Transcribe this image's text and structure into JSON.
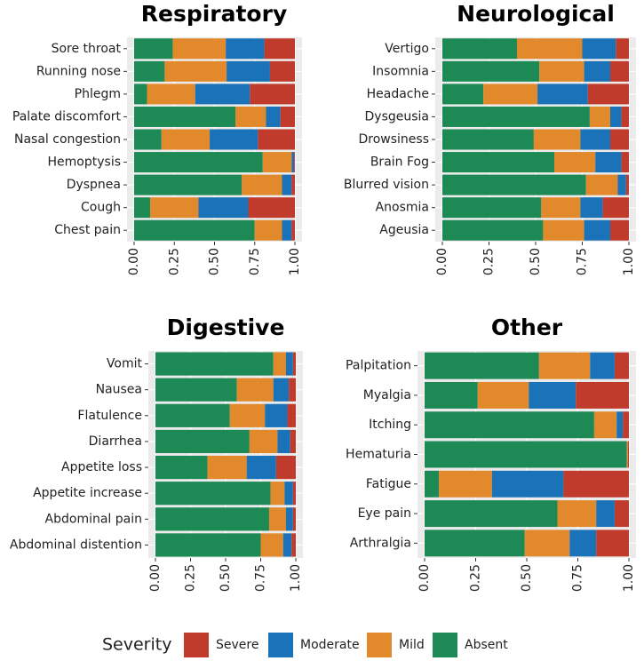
{
  "legend": {
    "title": "Severity",
    "position": "bottom"
  },
  "chart_data": [
    {
      "type": "bar",
      "orientation": "horizontal",
      "stacked": true,
      "title": "Respiratory",
      "grid": true,
      "categories": [
        "Sore throat",
        "Running nose",
        "Phlegm",
        "Palate discomfort",
        "Nasal congestion",
        "Hemoptysis",
        "Dyspnea",
        "Cough",
        "Chest pain"
      ],
      "series": [
        {
          "name": "Absent",
          "color": "#1d8a56",
          "values": [
            0.24,
            0.19,
            0.08,
            0.63,
            0.17,
            0.8,
            0.67,
            0.1,
            0.75
          ]
        },
        {
          "name": "Mild",
          "color": "#e2892b",
          "values": [
            0.33,
            0.385,
            0.3,
            0.19,
            0.3,
            0.18,
            0.25,
            0.3,
            0.17
          ]
        },
        {
          "name": "Moderate",
          "color": "#1a72b8",
          "values": [
            0.24,
            0.27,
            0.34,
            0.09,
            0.3,
            0.015,
            0.06,
            0.31,
            0.06
          ]
        },
        {
          "name": "Severe",
          "color": "#c13b2c",
          "values": [
            0.19,
            0.155,
            0.28,
            0.09,
            0.23,
            0.005,
            0.02,
            0.29,
            0.02
          ]
        }
      ],
      "xlim": [
        0,
        1
      ],
      "xticks": [
        {
          "value": 0,
          "label": "0.00"
        },
        {
          "value": 0.25,
          "label": "0.25"
        },
        {
          "value": 0.5,
          "label": "0.50"
        },
        {
          "value": 0.75,
          "label": "0.75"
        },
        {
          "value": 1,
          "label": "1.00"
        }
      ]
    },
    {
      "type": "bar",
      "orientation": "horizontal",
      "stacked": true,
      "title": "Neurological",
      "grid": true,
      "categories": [
        "Vertigo",
        "Insomnia",
        "Headache",
        "Dysgeusia",
        "Drowsiness",
        "Brain Fog",
        "Blurred vision",
        "Anosmia",
        "Ageusia"
      ],
      "series": [
        {
          "name": "Absent",
          "color": "#1d8a56",
          "values": [
            0.4,
            0.52,
            0.22,
            0.79,
            0.49,
            0.6,
            0.77,
            0.53,
            0.54
          ]
        },
        {
          "name": "Mild",
          "color": "#e2892b",
          "values": [
            0.35,
            0.24,
            0.29,
            0.11,
            0.25,
            0.22,
            0.17,
            0.21,
            0.22
          ]
        },
        {
          "name": "Moderate",
          "color": "#1a72b8",
          "values": [
            0.18,
            0.14,
            0.27,
            0.06,
            0.16,
            0.14,
            0.045,
            0.12,
            0.14
          ]
        },
        {
          "name": "Severe",
          "color": "#c13b2c",
          "values": [
            0.07,
            0.1,
            0.22,
            0.04,
            0.1,
            0.04,
            0.015,
            0.14,
            0.1
          ]
        }
      ],
      "xlim": [
        0,
        1
      ],
      "xticks": [
        {
          "value": 0,
          "label": "0.00"
        },
        {
          "value": 0.25,
          "label": "0.25"
        },
        {
          "value": 0.5,
          "label": "0.50"
        },
        {
          "value": 0.75,
          "label": "0.75"
        },
        {
          "value": 1,
          "label": "1.00"
        }
      ]
    },
    {
      "type": "bar",
      "orientation": "horizontal",
      "stacked": true,
      "title": "Digestive",
      "grid": true,
      "categories": [
        "Vomit",
        "Nausea",
        "Flatulence",
        "Diarrhea",
        "Appetite loss",
        "Appetite increase",
        "Abdominal pain",
        "Abdominal distention"
      ],
      "series": [
        {
          "name": "Absent",
          "color": "#1d8a56",
          "values": [
            0.84,
            0.58,
            0.53,
            0.67,
            0.37,
            0.82,
            0.81,
            0.75
          ]
        },
        {
          "name": "Mild",
          "color": "#e2892b",
          "values": [
            0.09,
            0.26,
            0.25,
            0.2,
            0.28,
            0.1,
            0.12,
            0.16
          ]
        },
        {
          "name": "Moderate",
          "color": "#1a72b8",
          "values": [
            0.05,
            0.11,
            0.16,
            0.09,
            0.21,
            0.06,
            0.05,
            0.06
          ]
        },
        {
          "name": "Severe",
          "color": "#c13b2c",
          "values": [
            0.02,
            0.05,
            0.06,
            0.04,
            0.14,
            0.02,
            0.02,
            0.03
          ]
        }
      ],
      "xlim": [
        0,
        1
      ],
      "xticks": [
        {
          "value": 0,
          "label": "0.00"
        },
        {
          "value": 0.25,
          "label": "0.25"
        },
        {
          "value": 0.5,
          "label": "0.50"
        },
        {
          "value": 0.75,
          "label": "0.75"
        },
        {
          "value": 1,
          "label": "1.00"
        }
      ]
    },
    {
      "type": "bar",
      "orientation": "horizontal",
      "stacked": true,
      "title": "Other",
      "grid": true,
      "categories": [
        "Palpitation",
        "Myalgia",
        "Itching",
        "Hematuria",
        "Fatigue",
        "Eye pain",
        "Arthralgia"
      ],
      "series": [
        {
          "name": "Absent",
          "color": "#1d8a56",
          "values": [
            0.56,
            0.26,
            0.83,
            0.99,
            0.07,
            0.65,
            0.49
          ]
        },
        {
          "name": "Mild",
          "color": "#e2892b",
          "values": [
            0.25,
            0.25,
            0.11,
            0.005,
            0.26,
            0.19,
            0.22
          ]
        },
        {
          "name": "Moderate",
          "color": "#1a72b8",
          "values": [
            0.12,
            0.23,
            0.03,
            0,
            0.35,
            0.09,
            0.13
          ]
        },
        {
          "name": "Severe",
          "color": "#c13b2c",
          "values": [
            0.07,
            0.26,
            0.03,
            0.005,
            0.32,
            0.07,
            0.16
          ]
        }
      ],
      "xlim": [
        0,
        1
      ],
      "xticks": [
        {
          "value": 0,
          "label": "0.00"
        },
        {
          "value": 0.25,
          "label": "0.25"
        },
        {
          "value": 0.5,
          "label": "0.50"
        },
        {
          "value": 0.75,
          "label": "0.75"
        },
        {
          "value": 1,
          "label": "1.00"
        }
      ]
    }
  ]
}
